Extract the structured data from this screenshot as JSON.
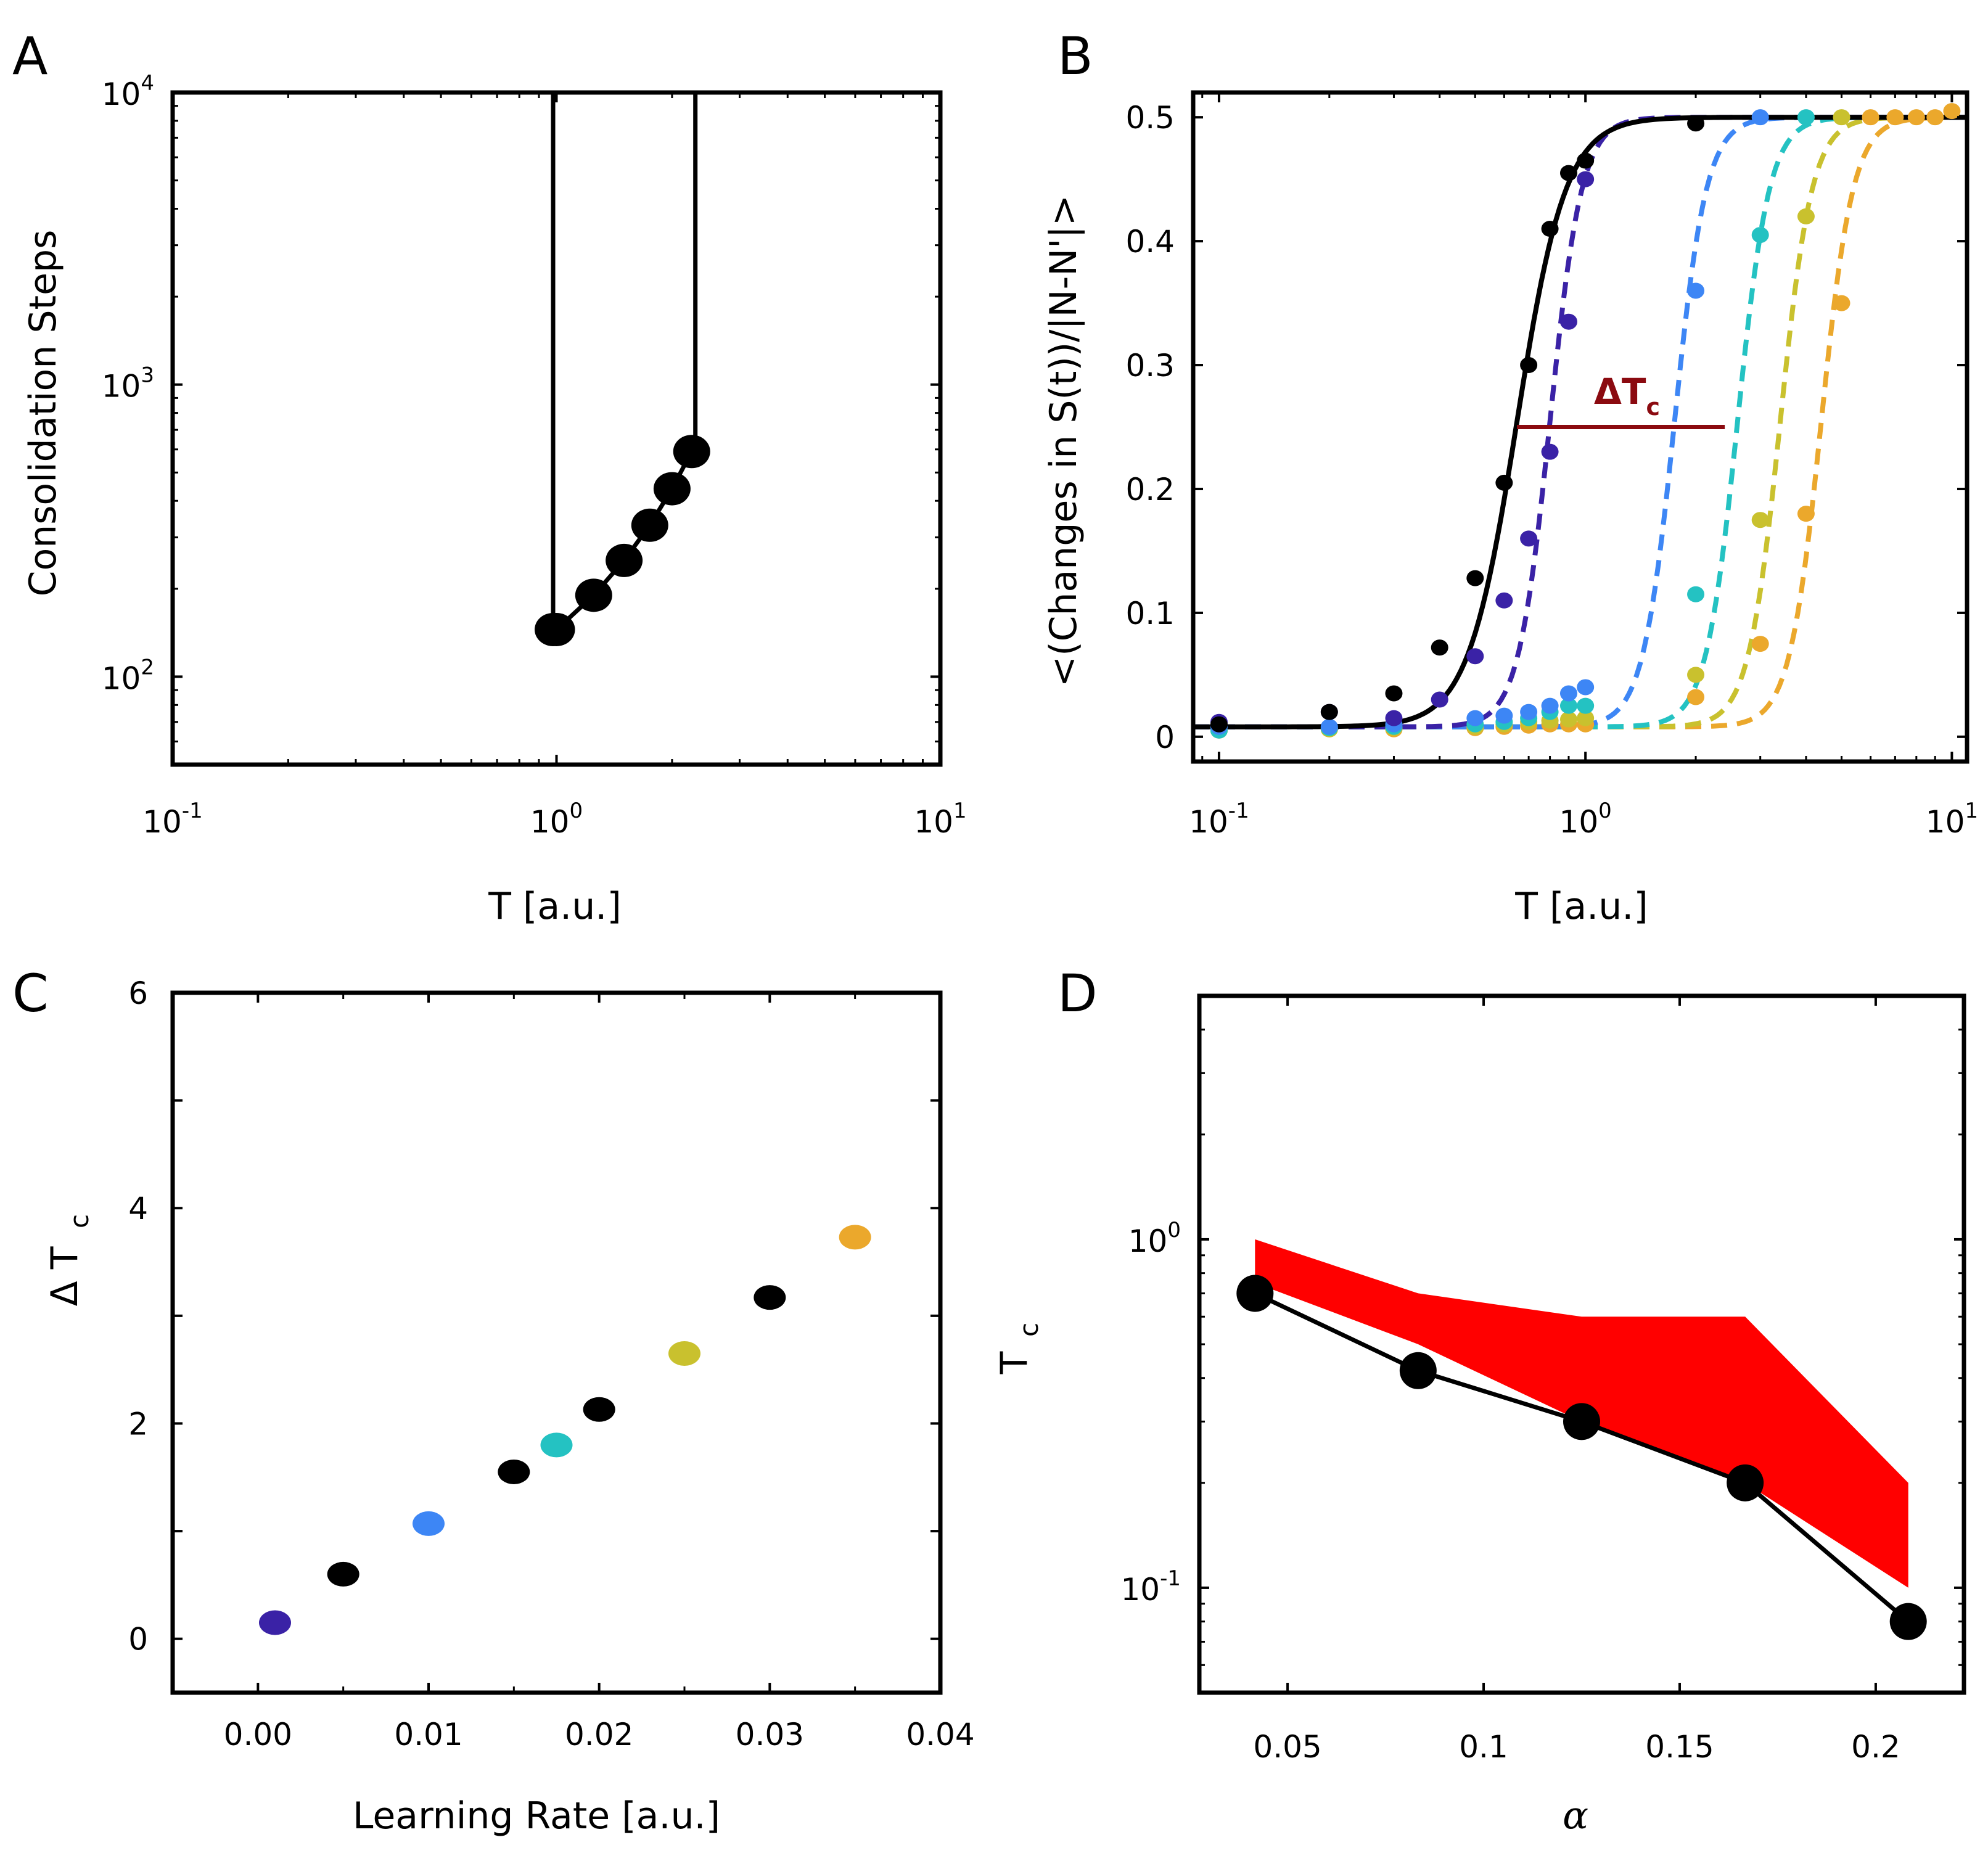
{
  "colors": {
    "black": "#000000",
    "series": [
      "#3a22a6",
      "#3d86f5",
      "#24c2c2",
      "#c9c12e",
      "#eba82c"
    ],
    "delta_line": "#8b0a10",
    "fill": "#ff0000"
  },
  "chart_data": [
    {
      "panel": "A",
      "type": "line",
      "title": "",
      "xlabel": "T [a.u.]",
      "ylabel": "Consolidation Steps",
      "xscale": "log",
      "yscale": "log",
      "xlim": [
        0.1,
        10
      ],
      "ylim": [
        50,
        10000
      ],
      "xticks": [
        {
          "v": 0.1,
          "b": "10",
          "e": "-1"
        },
        {
          "v": 1,
          "b": "10",
          "e": "0"
        },
        {
          "v": 10,
          "b": "10",
          "e": "1"
        }
      ],
      "yticks": [
        {
          "v": 100,
          "b": "10",
          "e": "2"
        },
        {
          "v": 1000,
          "b": "10",
          "e": "3"
        },
        {
          "v": 10000,
          "b": "10",
          "e": "4"
        }
      ],
      "series": [
        {
          "name": "curve",
          "x": [
            0.98,
            0.98,
            1.0,
            1.25,
            1.5,
            1.75,
            2.0,
            2.25,
            2.3,
            2.3
          ],
          "y": [
            10000,
            145,
            145,
            190,
            250,
            330,
            440,
            590,
            590,
            10000
          ]
        },
        {
          "name": "points",
          "x": [
            0.98,
            1.0,
            1.25,
            1.5,
            1.75,
            2.0,
            2.25
          ],
          "y": [
            145,
            145,
            190,
            250,
            330,
            440,
            590
          ]
        }
      ]
    },
    {
      "panel": "B",
      "type": "line",
      "title": "",
      "xlabel": "T [a.u.]",
      "ylabel": "<(Changes in S(t))/|N-N'|>",
      "xscale": "log",
      "xlim": [
        0.085,
        11
      ],
      "ylim": [
        -0.02,
        0.52
      ],
      "xticks": [
        {
          "v": 0.1,
          "b": "10",
          "e": "-1"
        },
        {
          "v": 1,
          "b": "10",
          "e": "0"
        },
        {
          "v": 10,
          "b": "10",
          "e": "1"
        }
      ],
      "yticks": [
        0,
        0.1,
        0.2,
        0.3,
        0.4,
        0.5
      ],
      "annotation": {
        "text": "ΔT",
        "sub": "c",
        "x1": 0.65,
        "x2": 2.4,
        "y": 0.25
      },
      "series": [
        {
          "name": "black",
          "style": "solid",
          "Tc": 0.65,
          "k": 6.5,
          "x": [
            0.1,
            0.2,
            0.3,
            0.4,
            0.5,
            0.6,
            0.7,
            0.8,
            0.9,
            1.0,
            2.0
          ],
          "y": [
            0.01,
            0.02,
            0.035,
            0.072,
            0.128,
            0.205,
            0.3,
            0.41,
            0.455,
            0.465,
            0.495
          ]
        },
        {
          "name": "purple",
          "style": "dashed",
          "Tc": 0.8,
          "k": 10,
          "x": [
            0.1,
            0.2,
            0.3,
            0.4,
            0.5,
            0.6,
            0.7,
            0.8,
            0.9,
            1.0
          ],
          "y": [
            0.012,
            0.02,
            0.015,
            0.03,
            0.065,
            0.11,
            0.16,
            0.23,
            0.335,
            0.45
          ]
        },
        {
          "name": "blue",
          "style": "dashed",
          "Tc": 1.75,
          "k": 10,
          "x": [
            0.1,
            0.2,
            0.3,
            0.5,
            0.6,
            0.7,
            0.8,
            0.9,
            1.0,
            2.0,
            3.0
          ],
          "y": [
            0.008,
            0.008,
            0.01,
            0.015,
            0.017,
            0.02,
            0.025,
            0.035,
            0.04,
            0.36,
            0.5
          ]
        },
        {
          "name": "cyan",
          "style": "dashed",
          "Tc": 2.6,
          "k": 10,
          "x": [
            0.1,
            0.2,
            0.3,
            0.5,
            0.6,
            0.7,
            0.8,
            0.9,
            1.0,
            2.0,
            3.0,
            4.0
          ],
          "y": [
            0.005,
            0.007,
            0.008,
            0.01,
            0.012,
            0.015,
            0.02,
            0.025,
            0.025,
            0.115,
            0.405,
            0.5
          ]
        },
        {
          "name": "olive",
          "style": "dashed",
          "Tc": 3.4,
          "k": 10,
          "x": [
            0.1,
            0.2,
            0.3,
            0.5,
            0.6,
            0.7,
            0.8,
            0.9,
            1.0,
            2.0,
            3.0,
            4.0,
            5.0
          ],
          "y": [
            0.005,
            0.006,
            0.007,
            0.008,
            0.01,
            0.012,
            0.013,
            0.014,
            0.015,
            0.05,
            0.175,
            0.42,
            0.5
          ]
        },
        {
          "name": "orange",
          "style": "dashed",
          "Tc": 4.4,
          "k": 10,
          "x": [
            0.1,
            0.2,
            0.3,
            0.5,
            0.6,
            0.7,
            0.8,
            0.9,
            1.0,
            2.0,
            3.0,
            4.0,
            5.0,
            6.0,
            7.0,
            8.0,
            9.0,
            10.0
          ],
          "y": [
            0.005,
            0.006,
            0.006,
            0.007,
            0.008,
            0.009,
            0.01,
            0.01,
            0.01,
            0.032,
            0.075,
            0.18,
            0.35,
            0.5,
            0.5,
            0.5,
            0.5,
            0.505
          ]
        }
      ]
    },
    {
      "panel": "C",
      "type": "scatter",
      "title": "",
      "xlabel": "Learning Rate [a.u.]",
      "ylabel": "Δ T",
      "ylabel_sub": "c",
      "xlim": [
        -0.005,
        0.04
      ],
      "ylim": [
        -0.5,
        6
      ],
      "xticks": [
        "0.00",
        "0.01",
        "0.02",
        "0.03",
        "0.04"
      ],
      "yticks": [
        "0",
        "2",
        "4",
        "6"
      ],
      "x": [
        0.001,
        0.005,
        0.01,
        0.015,
        0.0175,
        0.02,
        0.025,
        0.03,
        0.035
      ],
      "y": [
        0.15,
        0.6,
        1.07,
        1.55,
        1.8,
        2.13,
        2.65,
        3.17,
        3.73
      ],
      "point_colors": [
        "#3a22a6",
        "#000000",
        "#3d86f5",
        "#000000",
        "#24c2c2",
        "#000000",
        "#c9c12e",
        "#000000",
        "#eba82c"
      ]
    },
    {
      "panel": "D",
      "type": "line",
      "title": "",
      "xlabel": "α",
      "ylabel": "T",
      "ylabel_sub": "c",
      "yscale": "log",
      "xlim": [
        0.0275,
        0.2225
      ],
      "ylim": [
        0.05,
        5
      ],
      "xticks": [
        "0.05",
        "0.1",
        "0.15",
        "0.2"
      ],
      "yticks": [
        {
          "v": 0.1,
          "b": "10",
          "e": "-1"
        },
        {
          "v": 1,
          "b": "10",
          "e": "0"
        }
      ],
      "series": [
        {
          "name": "Tc",
          "x": [
            0.0417,
            0.0833,
            0.125,
            0.1667,
            0.2083
          ],
          "y": [
            0.7,
            0.42,
            0.3,
            0.2,
            0.08
          ]
        }
      ],
      "band": {
        "x": [
          0.0417,
          0.0833,
          0.125,
          0.1667,
          0.2083
        ],
        "upper": [
          1.0,
          0.7,
          0.6,
          0.6,
          0.2
        ],
        "lower": [
          0.75,
          0.5,
          0.3,
          0.2,
          0.1
        ]
      }
    }
  ]
}
